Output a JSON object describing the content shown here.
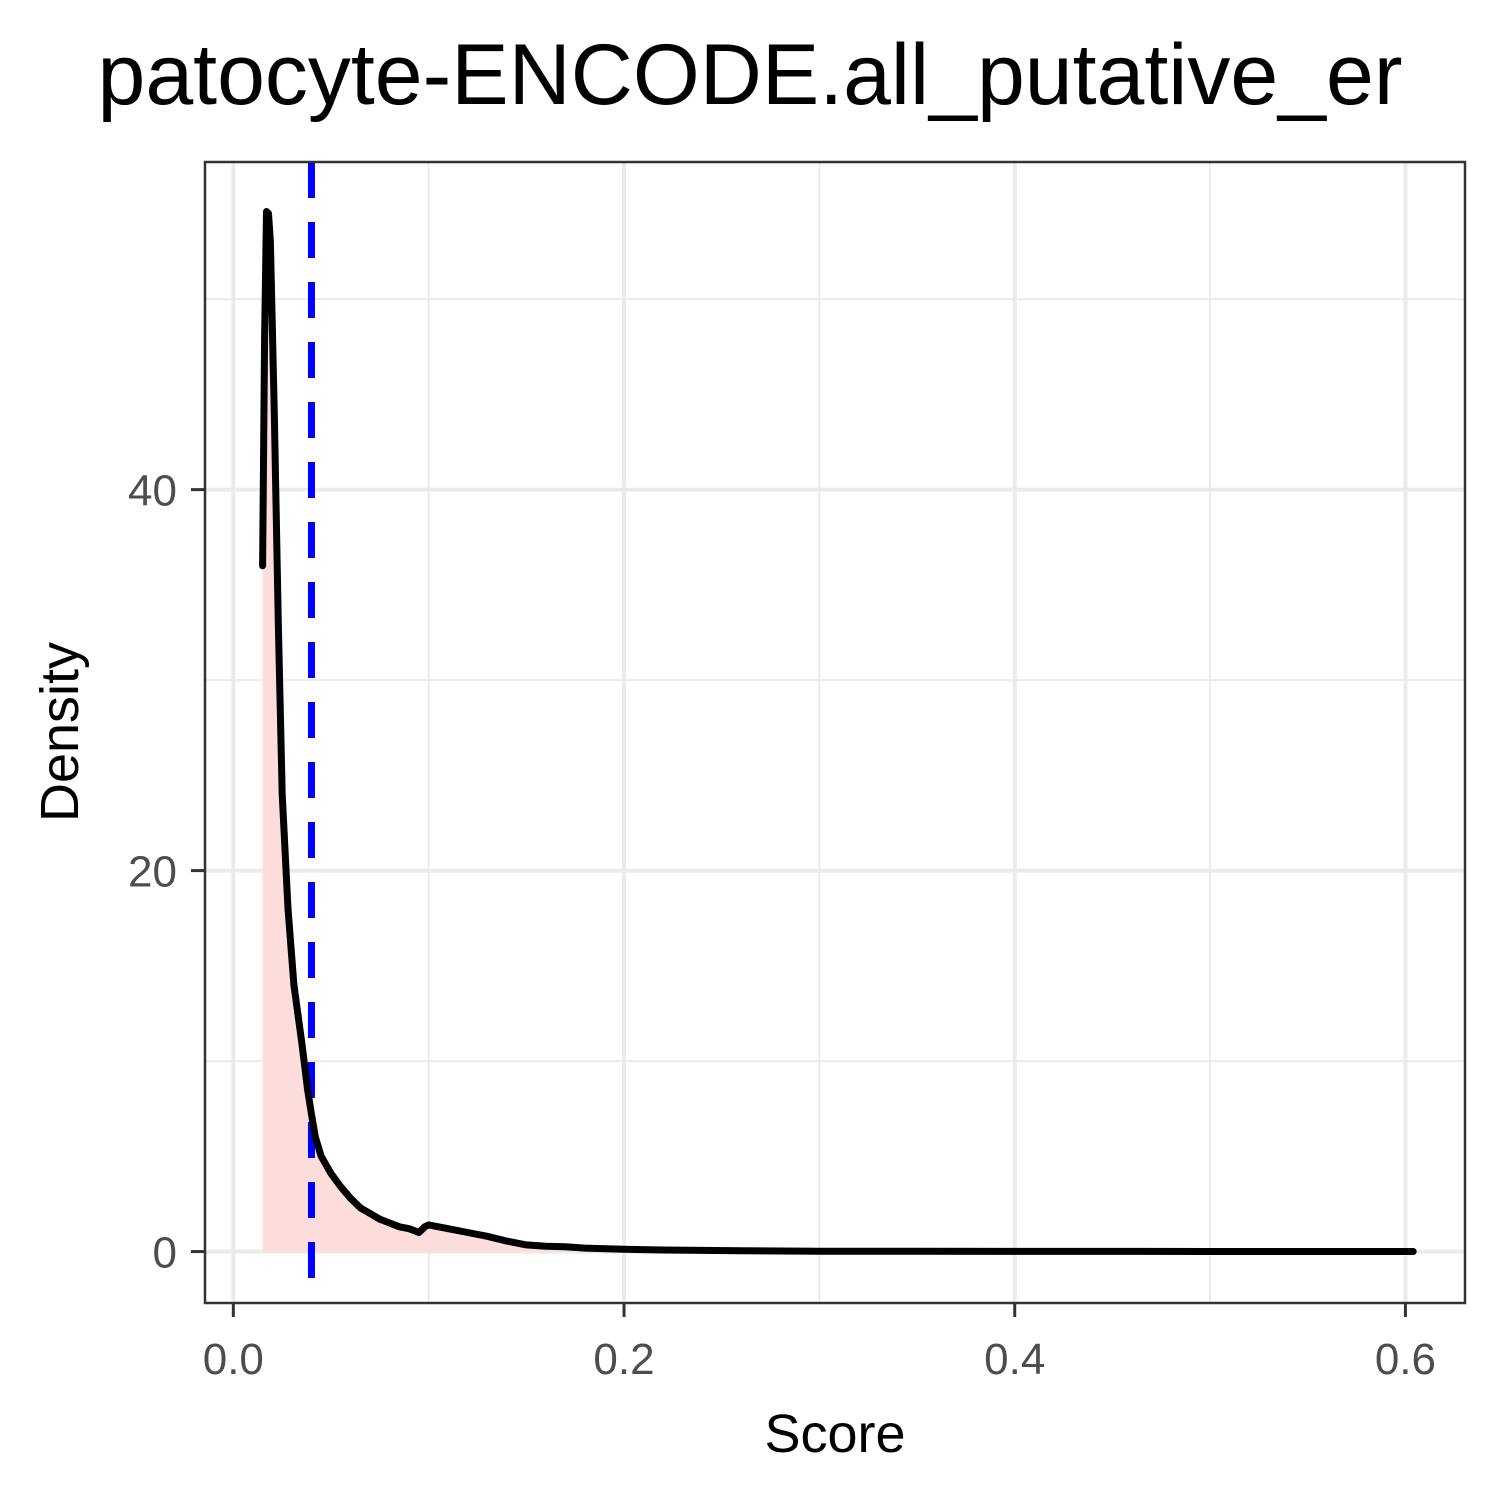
{
  "chart_data": {
    "type": "area",
    "title": "patocyte-ENCODE.all_putative_er",
    "xlabel": "Score",
    "ylabel": "Density",
    "xlim": [
      -0.0145,
      0.6305
    ],
    "ylim": [
      -2.7,
      57.2
    ],
    "x_ticks": [
      {
        "value": 0.0,
        "label": "0.0"
      },
      {
        "value": 0.2,
        "label": "0.2"
      },
      {
        "value": 0.4,
        "label": "0.4"
      },
      {
        "value": 0.6,
        "label": "0.6"
      }
    ],
    "y_ticks": [
      {
        "value": 0,
        "label": "0"
      },
      {
        "value": 20,
        "label": "20"
      },
      {
        "value": 40,
        "label": "40"
      }
    ],
    "x_minor_ticks": [
      0.1,
      0.3,
      0.5
    ],
    "y_minor_ticks": [
      10,
      30,
      50
    ],
    "grid": true,
    "vline": {
      "x": 0.04,
      "color": "#0000ff",
      "style": "dashed"
    },
    "density": {
      "line_color": "#000000",
      "fill_color": "#fddcdc",
      "x": [
        0.015,
        0.016,
        0.017,
        0.018,
        0.019,
        0.021,
        0.023,
        0.025,
        0.028,
        0.031,
        0.035,
        0.038,
        0.04,
        0.042,
        0.045,
        0.05,
        0.055,
        0.06,
        0.065,
        0.07,
        0.075,
        0.08,
        0.085,
        0.09,
        0.095,
        0.098,
        0.1,
        0.105,
        0.11,
        0.12,
        0.13,
        0.14,
        0.15,
        0.16,
        0.17,
        0.18,
        0.2,
        0.22,
        0.24,
        0.26,
        0.3,
        0.35,
        0.4,
        0.45,
        0.5,
        0.55,
        0.604
      ],
      "y": [
        36.0,
        48.0,
        54.6,
        54.5,
        53.0,
        44.0,
        33.0,
        24.0,
        18.0,
        14.0,
        11.0,
        8.5,
        7.2,
        6.0,
        5.0,
        4.1,
        3.4,
        2.8,
        2.3,
        2.0,
        1.7,
        1.5,
        1.3,
        1.2,
        1.0,
        1.3,
        1.4,
        1.3,
        1.2,
        1.0,
        0.8,
        0.55,
        0.35,
        0.28,
        0.25,
        0.18,
        0.12,
        0.08,
        0.06,
        0.04,
        0.02,
        0.015,
        0.01,
        0.01,
        0.005,
        0.005,
        0.003
      ]
    }
  }
}
